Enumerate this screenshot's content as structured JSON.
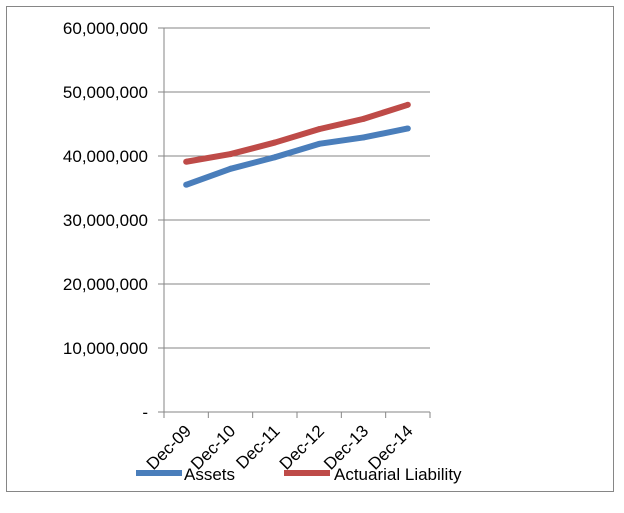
{
  "chart_data": {
    "type": "line",
    "title": "",
    "xlabel": "",
    "ylabel": "",
    "categories": [
      "Dec-09",
      "Dec-10",
      "Dec-11",
      "Dec-12",
      "Dec-13",
      "Dec-14"
    ],
    "y_ticks": [
      "-",
      "10,000,000",
      "20,000,000",
      "30,000,000",
      "40,000,000",
      "50,000,000",
      "60,000,000"
    ],
    "ylim": [
      0,
      60000000
    ],
    "grid": true,
    "legend": "bottom",
    "series": [
      {
        "name": "Assets",
        "color": "#4a7ebb",
        "values": [
          35500000,
          38000000,
          39800000,
          41900000,
          42900000,
          44300000
        ]
      },
      {
        "name": "Actuarial Liability",
        "color": "#be4b48",
        "values": [
          39100000,
          40300000,
          42100000,
          44200000,
          45800000,
          48000000
        ]
      }
    ]
  }
}
